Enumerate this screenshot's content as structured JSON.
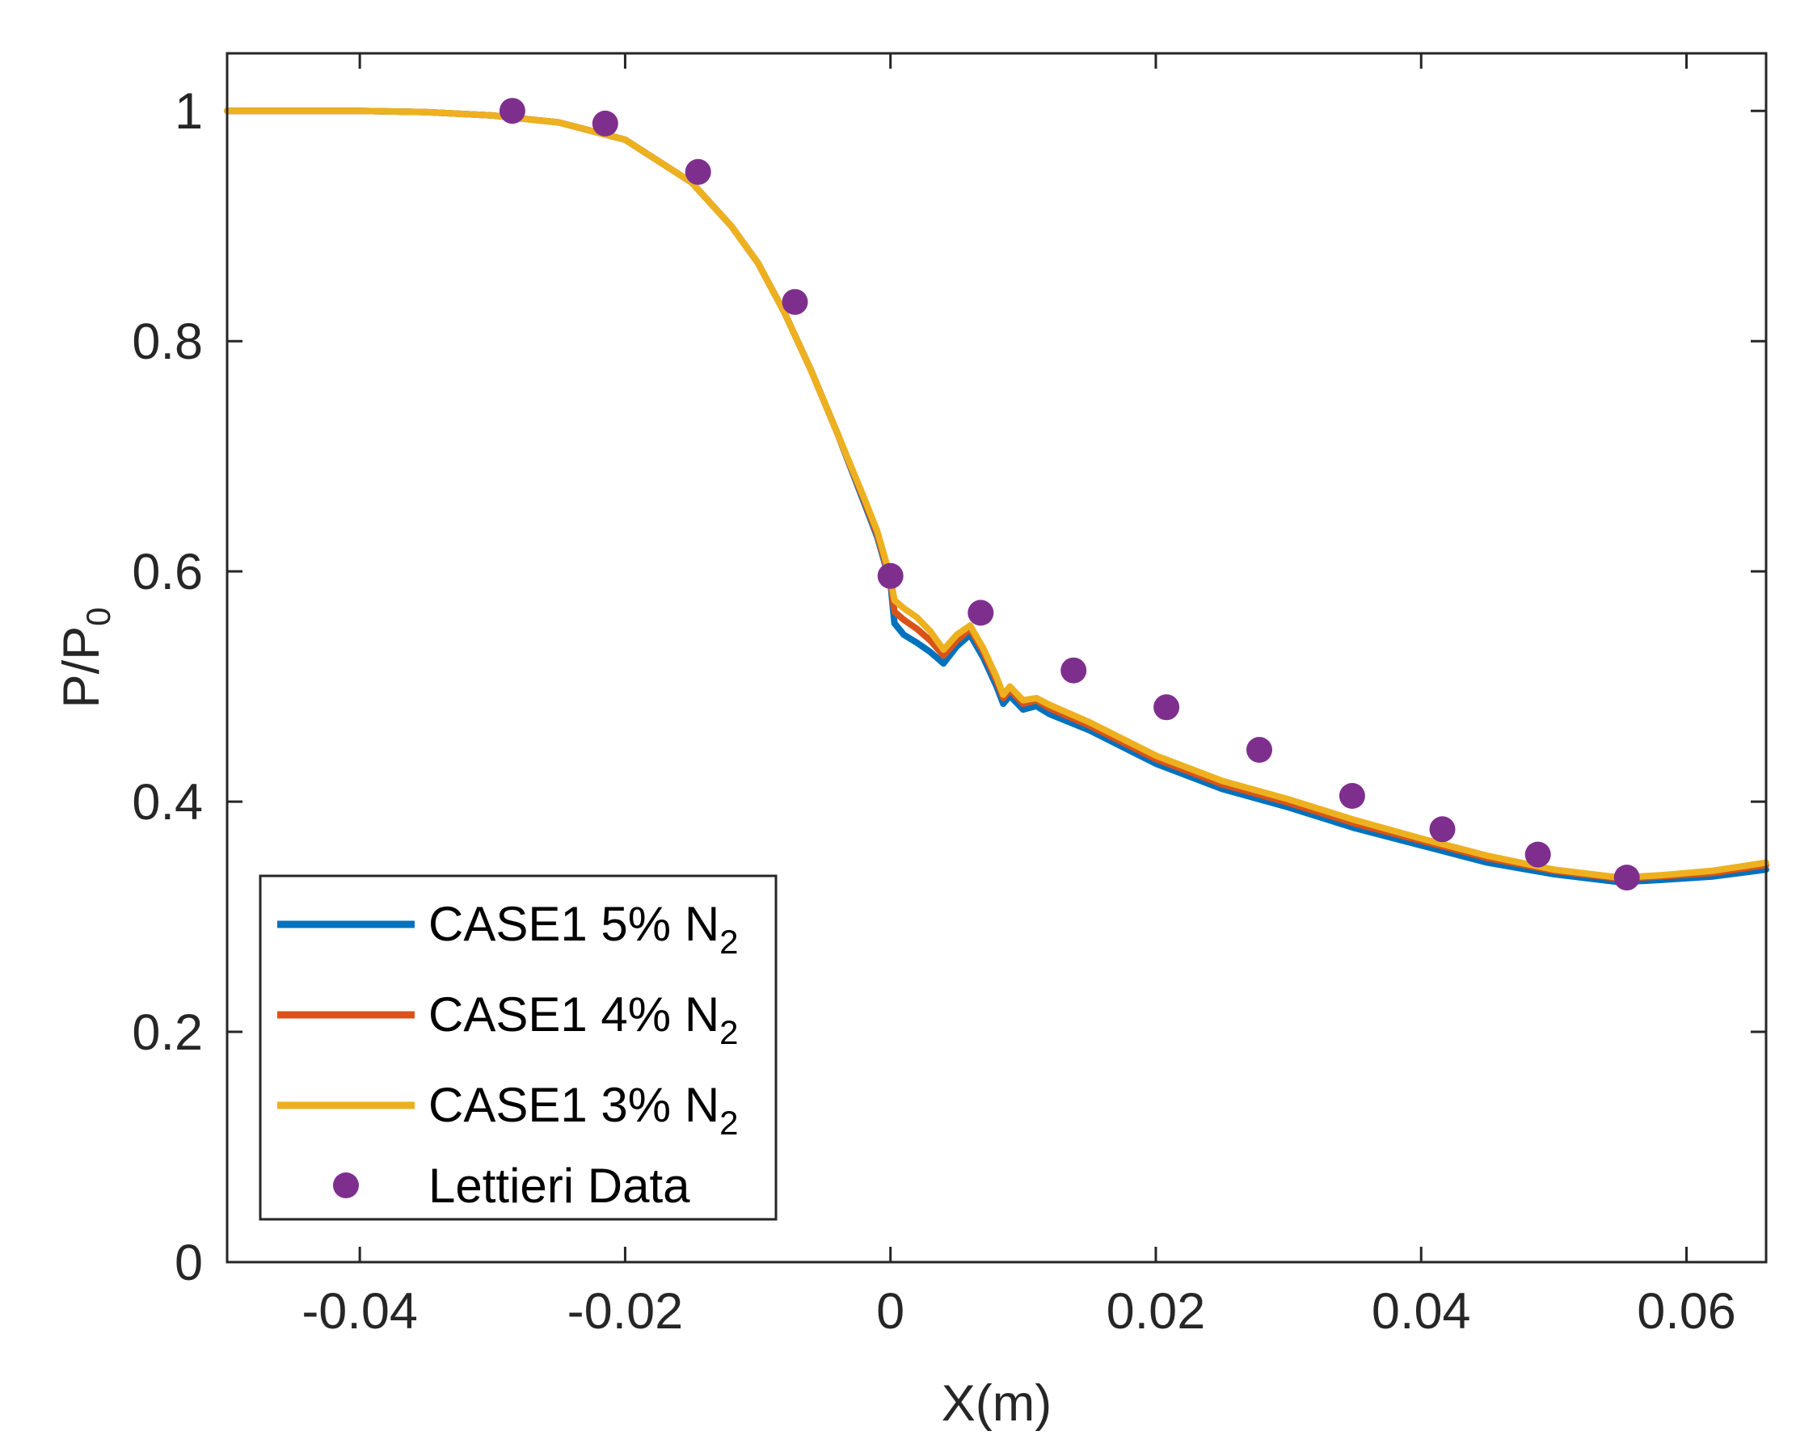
{
  "chart_data": {
    "type": "line",
    "title": "",
    "xlabel": "X(m)",
    "ylabel_main": "P/P",
    "ylabel_sub": "0",
    "xlim": [
      -0.05,
      0.066
    ],
    "ylim": [
      0,
      1.05
    ],
    "x_ticks": [
      -0.04,
      -0.02,
      0,
      0.02,
      0.04,
      0.06
    ],
    "x_tick_labels": [
      "-0.04",
      "-0.02",
      "0",
      "0.02",
      "0.04",
      "0.06"
    ],
    "y_ticks": [
      0,
      0.2,
      0.4,
      0.6,
      0.8,
      1
    ],
    "y_tick_labels": [
      "0",
      "0.2",
      "0.4",
      "0.6",
      "0.8",
      "1"
    ],
    "grid": false,
    "legend_position": "bottom-left",
    "series": [
      {
        "name": "CASE1 5% N2",
        "label_main": "CASE1 5% N",
        "label_sub": "2",
        "color": "#0072BD",
        "x": [
          -0.05,
          -0.04,
          -0.035,
          -0.03,
          -0.025,
          -0.02,
          -0.015,
          -0.012,
          -0.01,
          -0.008,
          -0.006,
          -0.004,
          -0.002,
          -0.001,
          0,
          0.0003,
          0.001,
          0.002,
          0.003,
          0.004,
          0.005,
          0.006,
          0.007,
          0.008,
          0.0085,
          0.009,
          0.01,
          0.011,
          0.012,
          0.015,
          0.02,
          0.025,
          0.03,
          0.035,
          0.04,
          0.045,
          0.05,
          0.055,
          0.058,
          0.062,
          0.066
        ],
        "y": [
          1.0,
          1.0,
          0.999,
          0.996,
          0.99,
          0.975,
          0.938,
          0.9,
          0.868,
          0.825,
          0.775,
          0.72,
          0.66,
          0.63,
          0.59,
          0.555,
          0.545,
          0.538,
          0.53,
          0.52,
          0.535,
          0.545,
          0.525,
          0.5,
          0.485,
          0.492,
          0.48,
          0.483,
          0.476,
          0.462,
          0.433,
          0.411,
          0.395,
          0.377,
          0.362,
          0.347,
          0.337,
          0.33,
          0.332,
          0.335,
          0.341
        ]
      },
      {
        "name": "CASE1 4% N2",
        "label_main": "CASE1 4% N",
        "label_sub": "2",
        "color": "#D95319",
        "x": [
          -0.05,
          -0.04,
          -0.035,
          -0.03,
          -0.025,
          -0.02,
          -0.015,
          -0.012,
          -0.01,
          -0.008,
          -0.006,
          -0.004,
          -0.002,
          -0.001,
          0,
          0.0003,
          0.001,
          0.002,
          0.003,
          0.004,
          0.005,
          0.006,
          0.007,
          0.008,
          0.0085,
          0.009,
          0.01,
          0.011,
          0.012,
          0.015,
          0.02,
          0.025,
          0.03,
          0.035,
          0.04,
          0.045,
          0.05,
          0.055,
          0.058,
          0.062,
          0.066
        ],
        "y": [
          1.0,
          1.0,
          0.999,
          0.996,
          0.99,
          0.975,
          0.938,
          0.9,
          0.868,
          0.825,
          0.775,
          0.72,
          0.662,
          0.632,
          0.592,
          0.565,
          0.558,
          0.55,
          0.54,
          0.527,
          0.54,
          0.55,
          0.53,
          0.505,
          0.49,
          0.497,
          0.485,
          0.488,
          0.481,
          0.466,
          0.437,
          0.415,
          0.399,
          0.381,
          0.366,
          0.351,
          0.34,
          0.333,
          0.335,
          0.338,
          0.345
        ]
      },
      {
        "name": "CASE1 3% N2",
        "label_main": "CASE1 3% N",
        "label_sub": "2",
        "color": "#EDB120",
        "x": [
          -0.05,
          -0.04,
          -0.035,
          -0.03,
          -0.025,
          -0.02,
          -0.015,
          -0.012,
          -0.01,
          -0.008,
          -0.006,
          -0.004,
          -0.002,
          -0.001,
          0,
          0.0003,
          0.001,
          0.002,
          0.003,
          0.004,
          0.005,
          0.006,
          0.007,
          0.008,
          0.0085,
          0.009,
          0.01,
          0.011,
          0.012,
          0.015,
          0.02,
          0.025,
          0.03,
          0.035,
          0.04,
          0.045,
          0.05,
          0.055,
          0.058,
          0.062,
          0.066
        ],
        "y": [
          1.0,
          1.0,
          0.999,
          0.996,
          0.99,
          0.975,
          0.938,
          0.9,
          0.868,
          0.825,
          0.775,
          0.72,
          0.664,
          0.635,
          0.595,
          0.575,
          0.568,
          0.56,
          0.548,
          0.532,
          0.545,
          0.553,
          0.533,
          0.508,
          0.493,
          0.5,
          0.488,
          0.49,
          0.484,
          0.469,
          0.44,
          0.418,
          0.402,
          0.384,
          0.368,
          0.353,
          0.341,
          0.334,
          0.336,
          0.34,
          0.347
        ]
      }
    ],
    "scatter": {
      "name": "Lettieri Data",
      "color": "#7E2F8E",
      "x": [
        -0.0285,
        -0.0215,
        -0.0145,
        -0.0072,
        0.0,
        0.0068,
        0.0138,
        0.0208,
        0.0278,
        0.0348,
        0.0416,
        0.0488,
        0.0555
      ],
      "y": [
        1.0,
        0.989,
        0.947,
        0.834,
        0.596,
        0.564,
        0.514,
        0.482,
        0.445,
        0.405,
        0.376,
        0.354,
        0.334
      ]
    }
  }
}
